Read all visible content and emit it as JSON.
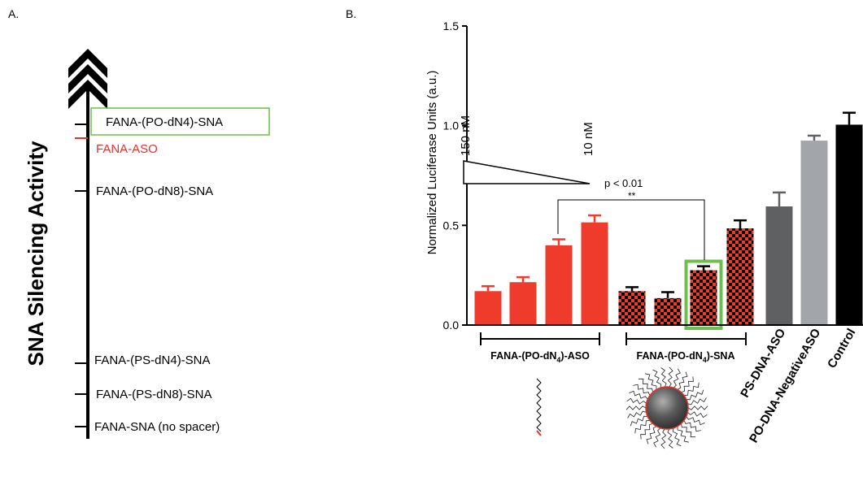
{
  "panel_a": {
    "panel_label": "A.",
    "axis_label": "SNA Silencing Activity",
    "entries": [
      {
        "label": "FANA-(PO-dN4)-SNA",
        "color": "#000000",
        "highlight": true
      },
      {
        "label": "FANA-ASO",
        "color": "#e8302a",
        "highlight": false
      },
      {
        "label": "FANA-(PO-dN8)-SNA",
        "color": "#000000",
        "highlight": false
      },
      {
        "label": "FANA-(PS-dN4)-SNA",
        "color": "#000000",
        "highlight": false
      },
      {
        "label": "FANA-(PS-dN8)-SNA",
        "color": "#000000",
        "highlight": false
      },
      {
        "label": "FANA-SNA (no spacer)",
        "color": "#000000",
        "highlight": false
      }
    ],
    "highlight_color": "#6cbf4a"
  },
  "panel_b": {
    "panel_label": "B.",
    "conc_high": "150 nM",
    "conc_low": "10 nM",
    "pvalue": "p  < 0.01",
    "stars": "**",
    "group1_label": "FANA-(PO-dN",
    "group1_sub": "4",
    "group1_suffix": ")-ASO",
    "group2_label": "FANA-(PO-dN",
    "group2_sub": "4",
    "group2_suffix": ")-SNA"
  },
  "chart_data": {
    "type": "bar",
    "ylabel": "Normalized Luciferase Units (a.u.)",
    "ylim": [
      0,
      1.5
    ],
    "yticks": [
      "0.0",
      "0.5",
      "1.0",
      "1.5"
    ],
    "categories": [
      "",
      "",
      "",
      "",
      "",
      "",
      "",
      "",
      "PS-DNA-ASO",
      "PO-DNA-NegativeASO",
      "Control"
    ],
    "values": [
      0.17,
      0.215,
      0.4,
      0.515,
      0.17,
      0.135,
      0.275,
      0.485,
      0.595,
      0.925,
      1.005
    ],
    "errors": [
      0.025,
      0.025,
      0.03,
      0.035,
      0.02,
      0.03,
      0.02,
      0.04,
      0.07,
      0.025,
      0.06
    ],
    "styles": [
      "red",
      "red",
      "red",
      "red",
      "check",
      "check",
      "check",
      "check",
      "darkgray",
      "lightgray",
      "black"
    ],
    "highlight_index": 6,
    "colors": {
      "red": "#ef3b2c",
      "darkgray": "#5f6062",
      "lightgray": "#a2a5aa",
      "black": "#000000",
      "highlight": "#6cbf4a"
    }
  }
}
